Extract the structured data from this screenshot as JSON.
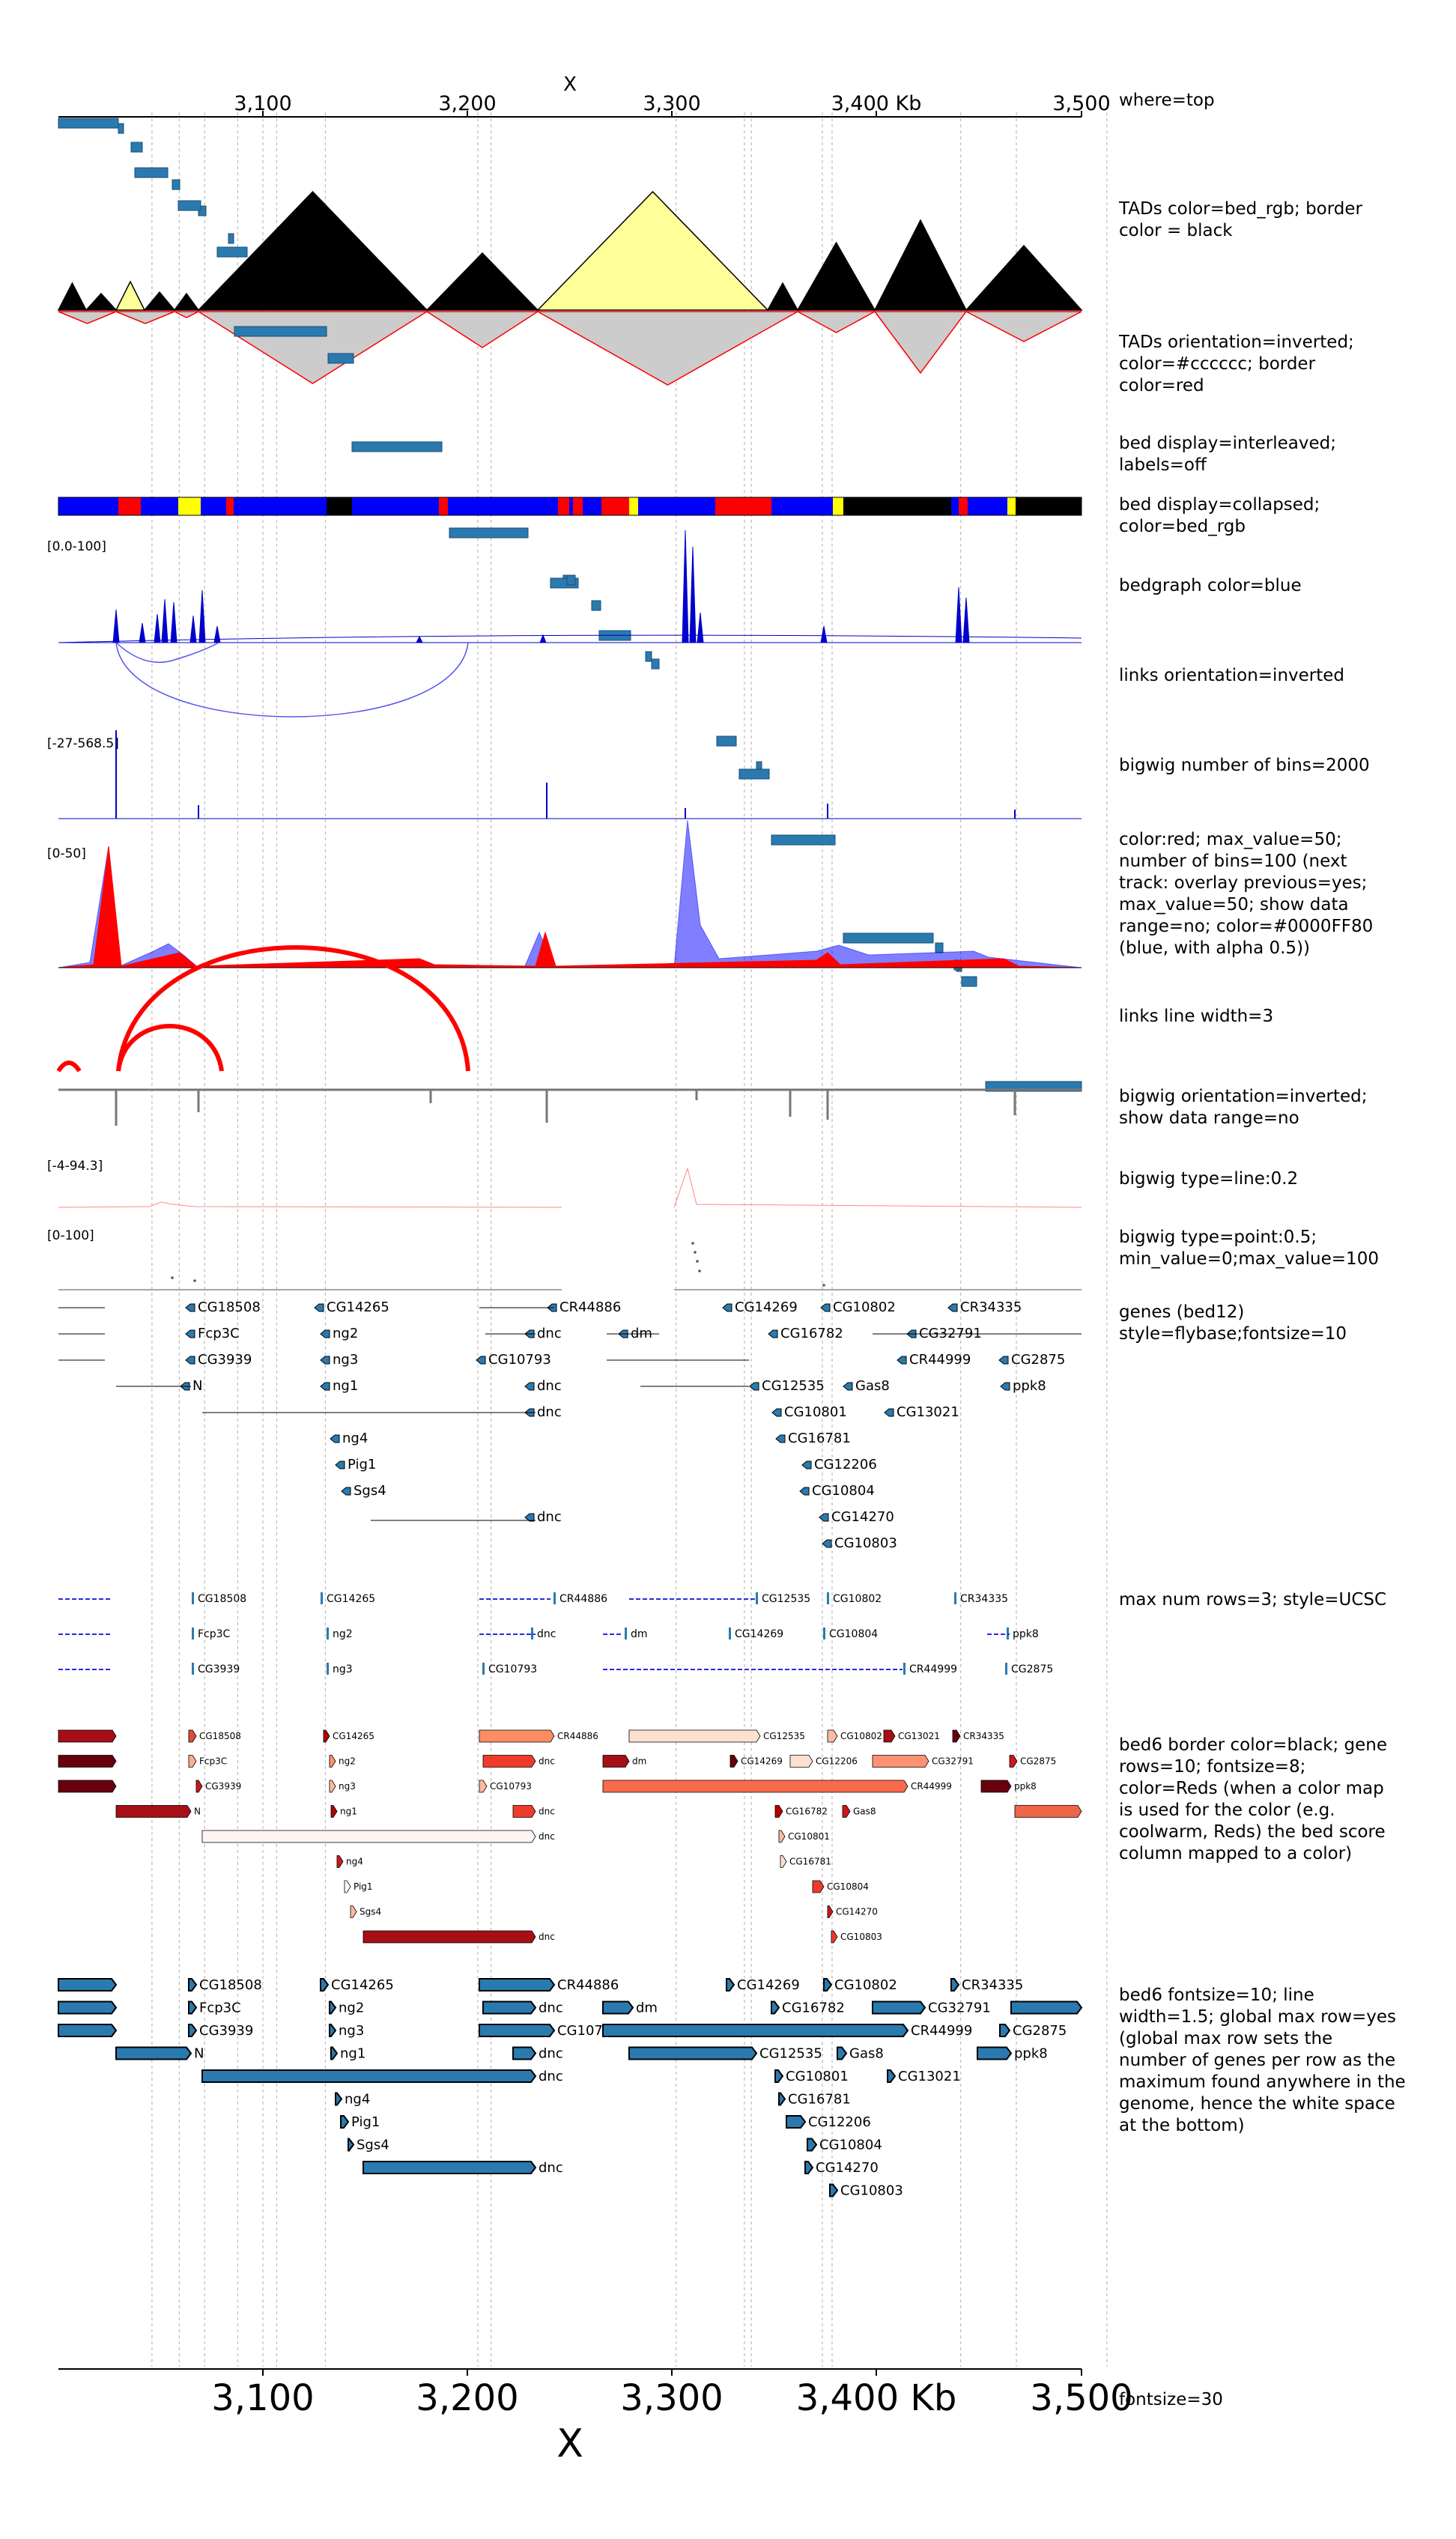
{
  "chromosome": "X",
  "axis_ticks": [
    "3,100",
    "3,200",
    "3,300",
    "3,400 Kb",
    "3,500"
  ],
  "tracks": [
    {
      "id": "axis-top",
      "lines": [
        "where=top"
      ]
    },
    {
      "id": "tads",
      "lines": [
        "TADs color=bed_rgb; border",
        "color = black"
      ]
    },
    {
      "id": "tads-inverted",
      "lines": [
        "TADs orientation=inverted;",
        "color=#cccccc; border",
        "color=red"
      ]
    },
    {
      "id": "bed-interleaved",
      "lines": [
        "bed display=interleaved;",
        "labels=off"
      ]
    },
    {
      "id": "bed-collapsed",
      "lines": [
        "bed display=collapsed;",
        "color=bed_rgb"
      ]
    },
    {
      "id": "bedgraph",
      "lines": [
        "bedgraph color=blue"
      ],
      "range": "[0.0-100]"
    },
    {
      "id": "links-inverted",
      "lines": [
        "links orientation=inverted"
      ]
    },
    {
      "id": "bigwig-bins",
      "lines": [
        "bigwig number of bins=2000"
      ],
      "range": "[-27-568.5]"
    },
    {
      "id": "overlay",
      "lines": [
        "color:red; max_value=50;",
        "number of bins=100 (next",
        "track: overlay previous=yes;",
        "max_value=50; show data",
        "range=no; color=#0000FF80",
        "(blue, with alpha 0.5))"
      ],
      "range": "[0-50]"
    },
    {
      "id": "links-wide",
      "lines": [
        "links line width=3"
      ]
    },
    {
      "id": "bigwig-inverted",
      "lines": [
        "bigwig orientation=inverted;",
        "show data range=no"
      ]
    },
    {
      "id": "bigwig-line",
      "lines": [
        "bigwig type=line:0.2"
      ],
      "range": "[-4-94.3]"
    },
    {
      "id": "bigwig-point",
      "lines": [
        "bigwig type=point:0.5;",
        "min_value=0;max_value=100"
      ],
      "range": "[0-100]"
    },
    {
      "id": "genes-flybase",
      "lines": [
        "genes (bed12)",
        "style=flybase;fontsize=10"
      ]
    },
    {
      "id": "genes-ucsc",
      "lines": [
        "max num rows=3; style=UCSC"
      ]
    },
    {
      "id": "genes-reds",
      "lines": [
        "bed6 border color=black; gene",
        "rows=10; fontsize=8;",
        "color=Reds (when a color map",
        "is used for the color (e.g.",
        "coolwarm, Reds) the bed score",
        "column mapped to a color)"
      ]
    },
    {
      "id": "genes-blue",
      "lines": [
        "bed6 fontsize=10; line",
        "width=1.5; global max row=yes",
        "(global max row sets the",
        "number of genes per row as the",
        "maximum found anywhere in the",
        "genome, hence the white space",
        "at the bottom)"
      ]
    },
    {
      "id": "axis-bottom",
      "lines": [
        "fontsize=30"
      ]
    }
  ],
  "genes": [
    {
      "label": "CG18508",
      "row": 0
    },
    {
      "label": "CG14265",
      "row": 0
    },
    {
      "label": "CR44886",
      "row": 0
    },
    {
      "label": "CG14269",
      "row": 0
    },
    {
      "label": "CG10802",
      "row": 0
    },
    {
      "label": "CR34335",
      "row": 0
    },
    {
      "label": "Fcp3C",
      "row": 1
    },
    {
      "label": "ng2",
      "row": 1
    },
    {
      "label": "dnc",
      "row": 1
    },
    {
      "label": "dm",
      "row": 1
    },
    {
      "label": "CG16782",
      "row": 1
    },
    {
      "label": "CG32791",
      "row": 1
    },
    {
      "label": "CG3939",
      "row": 2
    },
    {
      "label": "ng3",
      "row": 2
    },
    {
      "label": "CG10793",
      "row": 2
    },
    {
      "label": "CR44999",
      "row": 2
    },
    {
      "label": "CG2875",
      "row": 2
    },
    {
      "label": "N",
      "row": 3
    },
    {
      "label": "ng1",
      "row": 3
    },
    {
      "label": "dnc",
      "row": 3
    },
    {
      "label": "CG12535",
      "row": 3
    },
    {
      "label": "Gas8",
      "row": 3
    },
    {
      "label": "ppk8",
      "row": 3
    },
    {
      "label": "dnc",
      "row": 4
    },
    {
      "label": "CG10801",
      "row": 4
    },
    {
      "label": "CG13021",
      "row": 4
    },
    {
      "label": "ng4",
      "row": 5
    },
    {
      "label": "CG16781",
      "row": 5
    },
    {
      "label": "Pig1",
      "row": 6
    },
    {
      "label": "CG12206",
      "row": 6
    },
    {
      "label": "Sgs4",
      "row": 7
    },
    {
      "label": "CG10804",
      "row": 7
    },
    {
      "label": "dnc",
      "row": 8
    },
    {
      "label": "CG14270",
      "row": 8
    },
    {
      "label": "CG10803",
      "row": 9
    }
  ],
  "colors": {
    "tad_black": "#000000",
    "tad_yellow": "#ffff99",
    "tad_inv": "#cccccc",
    "bed_blue": "#2a7ab0",
    "bedgraph": "#0000cc",
    "red": "#ff0000",
    "grey": "#777777"
  }
}
